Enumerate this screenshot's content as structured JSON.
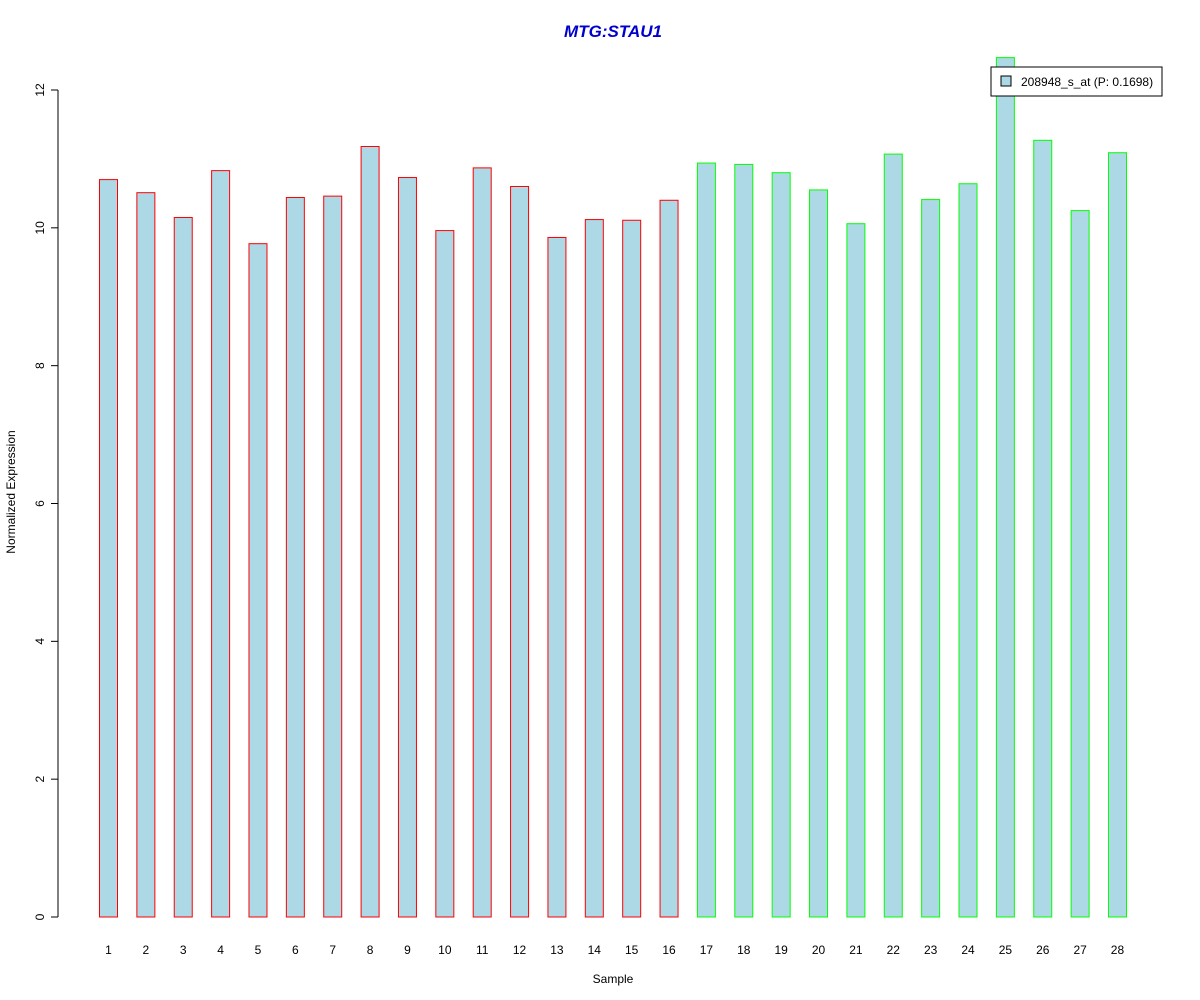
{
  "chart_data": {
    "type": "bar",
    "title": "MTG:STAU1",
    "xlabel": "Sample",
    "ylabel": "Normalized Expression",
    "ylim": [
      0,
      12
    ],
    "yticks": [
      0,
      2,
      4,
      6,
      8,
      10,
      12
    ],
    "grid": false,
    "categories": [
      "1",
      "2",
      "3",
      "4",
      "5",
      "6",
      "7",
      "8",
      "9",
      "10",
      "11",
      "12",
      "13",
      "14",
      "15",
      "16",
      "17",
      "18",
      "19",
      "20",
      "21",
      "22",
      "23",
      "24",
      "25",
      "26",
      "27",
      "28"
    ],
    "series": [
      {
        "name": "208948_s_at (P: 0.1698)",
        "values": [
          10.7,
          10.51,
          10.15,
          10.83,
          9.77,
          10.44,
          10.46,
          11.18,
          10.73,
          9.96,
          10.87,
          10.6,
          9.86,
          10.12,
          10.11,
          10.4,
          10.94,
          10.92,
          10.8,
          10.55,
          10.06,
          11.07,
          10.41,
          10.64,
          12.47,
          11.27,
          10.25,
          11.09
        ]
      }
    ],
    "bar_fill": "#add8e6",
    "group_border_colors": [
      "#ff0000",
      "#ff0000",
      "#ff0000",
      "#ff0000",
      "#ff0000",
      "#ff0000",
      "#ff0000",
      "#ff0000",
      "#ff0000",
      "#ff0000",
      "#ff0000",
      "#ff0000",
      "#ff0000",
      "#ff0000",
      "#ff0000",
      "#ff0000",
      "#00ff00",
      "#00ff00",
      "#00ff00",
      "#00ff00",
      "#00ff00",
      "#00ff00",
      "#00ff00",
      "#00ff00",
      "#00ff00",
      "#00ff00",
      "#00ff00",
      "#00ff00"
    ],
    "title_color": "#0000cd",
    "legend": {
      "placement": "top-right",
      "label": "208948_s_at (P: 0.1698)",
      "swatch_fill": "#add8e6",
      "swatch_border": "#000000"
    }
  }
}
